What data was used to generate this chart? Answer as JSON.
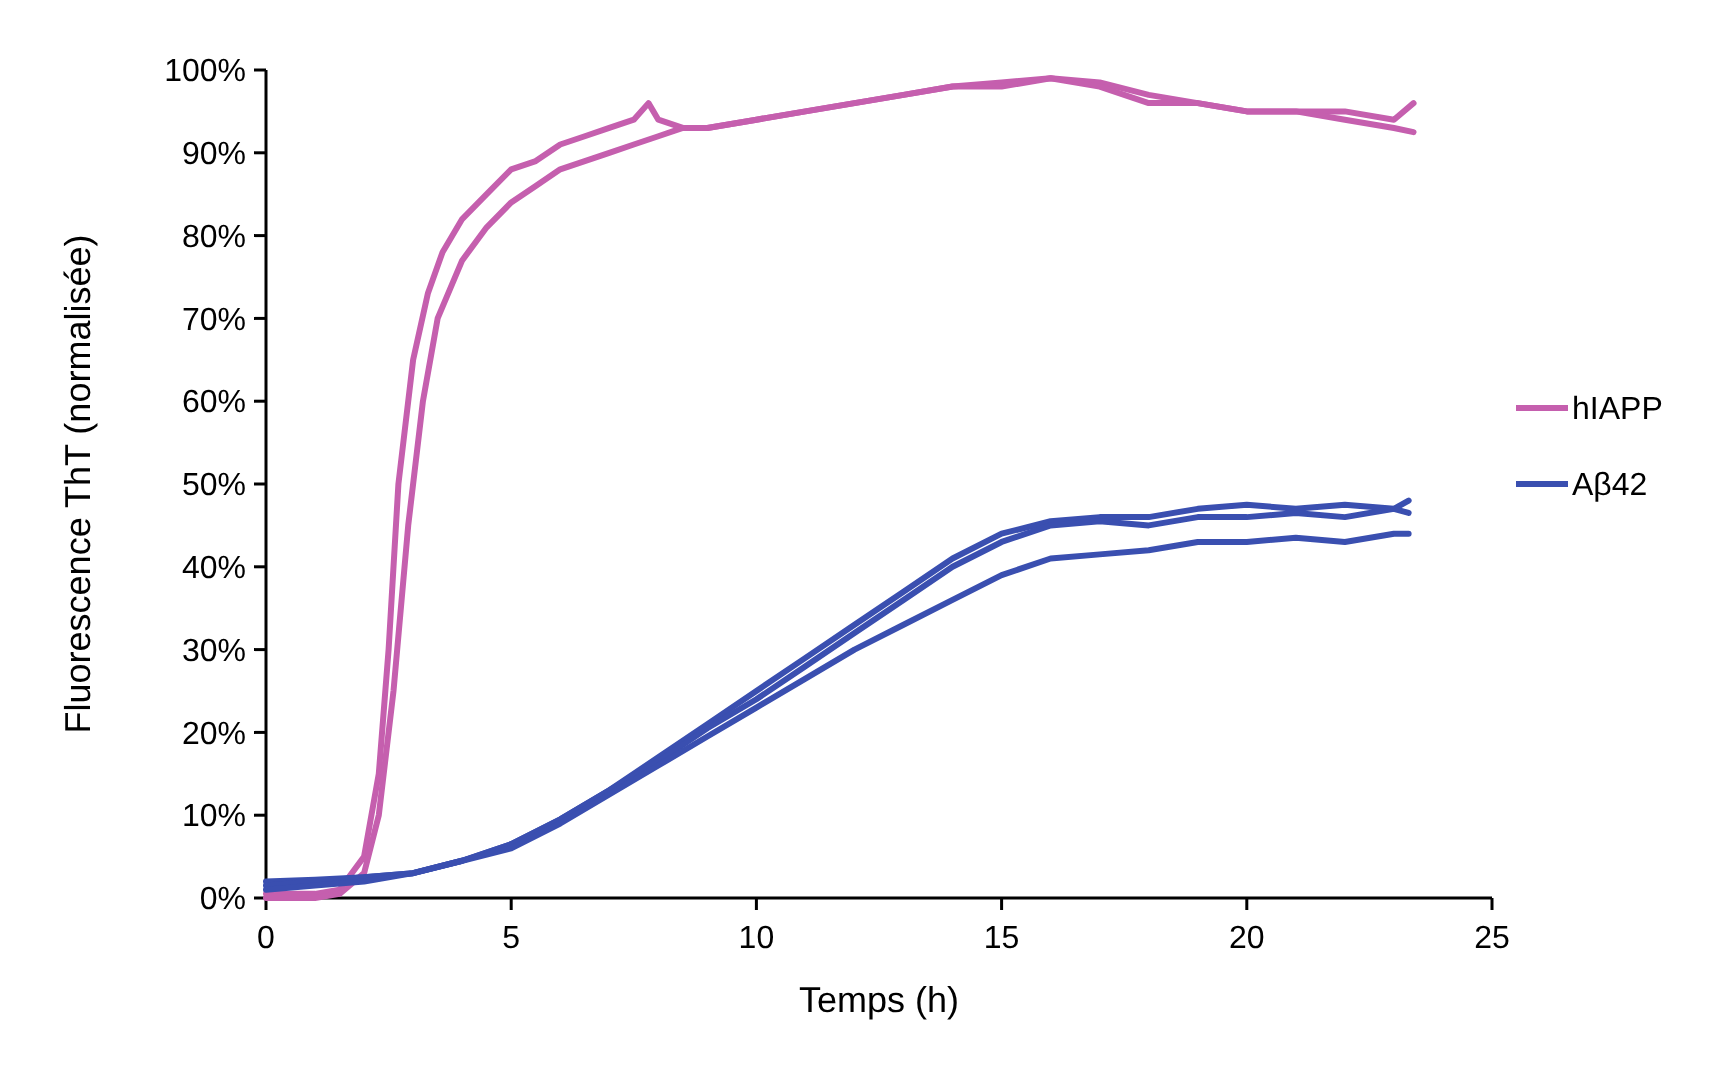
{
  "chart_data": {
    "type": "line",
    "xlabel": "Temps (h)",
    "ylabel": "Fluorescence ThT (normalisée)",
    "xlim": [
      0,
      25
    ],
    "xticks": [
      0,
      5,
      10,
      15,
      20,
      25
    ],
    "ylim": [
      0,
      100
    ],
    "yticks": [
      {
        "value": 0,
        "label": "0%"
      },
      {
        "value": 10,
        "label": "10%"
      },
      {
        "value": 20,
        "label": "20%"
      },
      {
        "value": 30,
        "label": "30%"
      },
      {
        "value": 40,
        "label": "40%"
      },
      {
        "value": 50,
        "label": "50%"
      },
      {
        "value": 60,
        "label": "60%"
      },
      {
        "value": 70,
        "label": "70%"
      },
      {
        "value": 80,
        "label": "80%"
      },
      {
        "value": 90,
        "label": "90%"
      },
      {
        "value": 100,
        "label": "100%"
      }
    ],
    "grid": false,
    "legend": "right",
    "marker": "none",
    "line_style": "solid",
    "series": [
      {
        "name": "hIAPP",
        "color": "#c55fae",
        "x": [
          0,
          1,
          1.5,
          2,
          2.3,
          2.5,
          2.7,
          3,
          3.3,
          3.6,
          4,
          4.5,
          5,
          5.5,
          6,
          6.5,
          7,
          7.5,
          7.8,
          8,
          8.5,
          9,
          10,
          11,
          12,
          13,
          14,
          15,
          16,
          17,
          18,
          19,
          20,
          21,
          22,
          23,
          23.4
        ],
        "values": [
          0.5,
          0.5,
          1,
          5,
          15,
          30,
          50,
          65,
          73,
          78,
          82,
          85,
          88,
          89,
          91,
          92,
          93,
          94,
          96,
          94,
          93,
          93,
          94,
          95,
          96,
          97,
          98,
          98.5,
          99,
          98.5,
          97,
          96,
          95,
          95,
          95,
          94,
          96
        ]
      },
      {
        "color": "#c55fae",
        "x": [
          0,
          1,
          1.5,
          2,
          2.3,
          2.6,
          2.9,
          3.2,
          3.5,
          4,
          4.5,
          5,
          5.5,
          6,
          6.5,
          7,
          7.5,
          8,
          8.5,
          9,
          10,
          11,
          12,
          13,
          14,
          15,
          16,
          17,
          18,
          19,
          20,
          21,
          22,
          23,
          23.4
        ],
        "values": [
          0,
          0,
          0.5,
          3,
          10,
          25,
          45,
          60,
          70,
          77,
          81,
          84,
          86,
          88,
          89,
          90,
          91,
          92,
          93,
          93,
          94,
          95,
          96,
          97,
          98,
          98,
          99,
          98,
          96,
          96,
          95,
          95,
          94,
          93,
          92.5
        ]
      },
      {
        "name": "Aβ42",
        "color": "#3a4fb0",
        "x": [
          0,
          1,
          2,
          3,
          4,
          5,
          6,
          7,
          8,
          9,
          10,
          11,
          12,
          13,
          14,
          15,
          16,
          17,
          18,
          19,
          20,
          21,
          22,
          23,
          23.3
        ],
        "values": [
          2,
          2.2,
          2.5,
          3,
          4.5,
          6.5,
          9.5,
          13,
          17,
          21,
          25,
          29,
          33,
          37,
          41,
          44,
          45.5,
          46,
          46,
          47,
          47.5,
          47,
          47.5,
          47,
          48
        ]
      },
      {
        "color": "#3a4fb0",
        "x": [
          0,
          1,
          2,
          3,
          4,
          5,
          6,
          7,
          8,
          9,
          10,
          11,
          12,
          13,
          14,
          15,
          16,
          17,
          18,
          19,
          20,
          21,
          22,
          23,
          23.3
        ],
        "values": [
          1.5,
          2,
          2.5,
          3,
          4.5,
          6.5,
          9.5,
          13,
          16.5,
          20.5,
          24,
          28,
          32,
          36,
          40,
          43,
          45,
          45.5,
          45,
          46,
          46,
          46.5,
          46,
          47,
          46.5
        ]
      },
      {
        "color": "#3a4fb0",
        "x": [
          0,
          1,
          2,
          3,
          4,
          5,
          6,
          7,
          8,
          9,
          10,
          11,
          12,
          13,
          14,
          15,
          16,
          17,
          18,
          19,
          20,
          21,
          22,
          23,
          23.3
        ],
        "values": [
          1,
          1.5,
          2,
          3,
          4.5,
          6,
          9,
          12.5,
          16,
          19.5,
          23,
          26.5,
          30,
          33,
          36,
          39,
          41,
          41.5,
          42,
          43,
          43,
          43.5,
          43,
          44,
          44
        ]
      }
    ]
  }
}
